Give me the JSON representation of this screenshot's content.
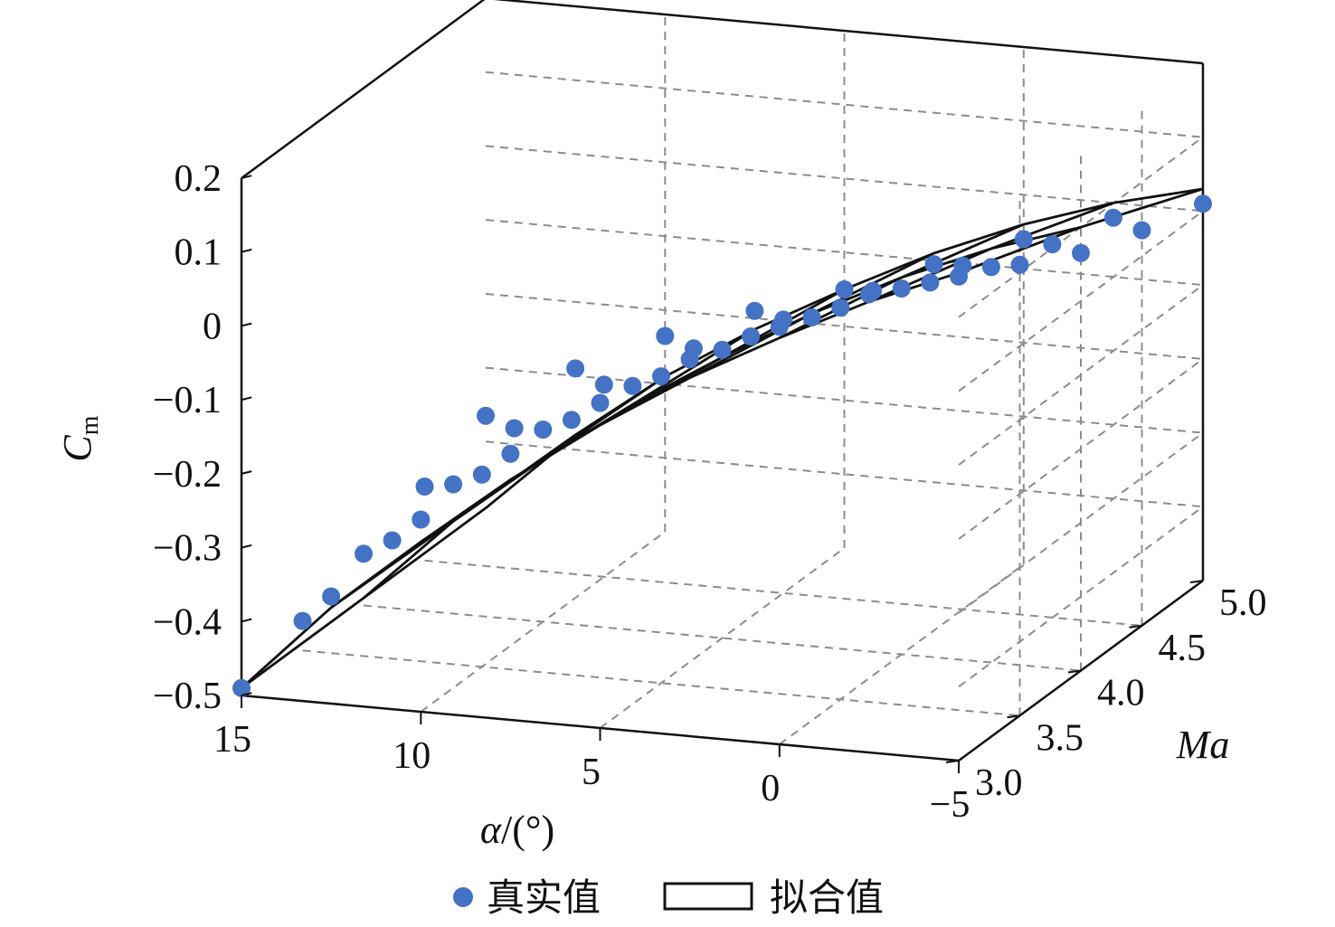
{
  "chart_data": {
    "type": "scatter3d_surface",
    "axes": {
      "alpha": {
        "label_prefix": "α",
        "label_suffix": "/(°)",
        "range": [
          -5,
          15
        ],
        "ticks": [
          "15",
          "10",
          "5",
          "0",
          "−5"
        ],
        "tick_values": [
          15,
          10,
          5,
          0,
          -5
        ]
      },
      "ma": {
        "label": "Ma",
        "range": [
          3.0,
          5.0
        ],
        "ticks": [
          "3.0",
          "3.5",
          "4.0",
          "4.5",
          "5.0"
        ],
        "tick_values": [
          3.0,
          3.5,
          4.0,
          4.5,
          5.0
        ]
      },
      "cm": {
        "label_main": "C",
        "label_sub": "m",
        "range": [
          -0.5,
          0.2
        ],
        "ticks": [
          "0.2",
          "0.1",
          "0",
          "−0.1",
          "−0.2",
          "−0.3",
          "−0.4",
          "−0.5"
        ],
        "tick_values": [
          0.2,
          0.1,
          0,
          -0.1,
          -0.2,
          -0.3,
          -0.4,
          -0.5
        ]
      }
    },
    "grid": true,
    "legend": {
      "position": "bottom",
      "items": [
        {
          "label": "真实值",
          "marker": "dot",
          "color": "#4472C4"
        },
        {
          "label": "拟合值",
          "marker": "rect",
          "color": "#111111"
        }
      ]
    },
    "alpha_values": [
      15,
      12.5,
      10,
      7.5,
      5,
      2.5,
      0,
      -2.5,
      -5
    ],
    "ma_values": [
      3.0,
      3.5,
      4.0,
      4.5,
      5.0
    ],
    "surface_ma_values": [
      3.0,
      4.0,
      5.0
    ],
    "cm_values": [
      [
        -0.49,
        -0.355,
        -0.24,
        -0.14,
        -0.06,
        0.01,
        0.065,
        0.12,
        0.155
      ],
      [
        -0.46,
        -0.34,
        -0.24,
        -0.155,
        -0.085,
        -0.02,
        0.03,
        0.075,
        0.11
      ],
      [
        -0.43,
        -0.325,
        -0.24,
        -0.17,
        -0.11,
        -0.055,
        -0.005,
        0.035,
        0.065
      ],
      [
        -0.4,
        -0.31,
        -0.24,
        -0.18,
        -0.13,
        -0.08,
        -0.035,
        0.005,
        0.035
      ],
      [
        -0.365,
        -0.29,
        -0.235,
        -0.19,
        -0.15,
        -0.105,
        -0.06,
        -0.02,
        0.01
      ]
    ],
    "fit_values": [
      [
        -0.49,
        -0.37,
        -0.27,
        -0.175,
        -0.09,
        -0.015,
        0.05,
        0.11,
        0.16
      ],
      [
        -0.49,
        -0.375,
        -0.28,
        -0.195,
        -0.12,
        -0.05,
        0.01,
        0.06,
        0.1
      ],
      [
        -0.49,
        -0.38,
        -0.29,
        -0.215,
        -0.15,
        -0.09,
        -0.04,
        0.0,
        0.03
      ]
    ],
    "partial_strip": {
      "ma": [
        3.0,
        4.0
      ],
      "alpha": [
        10,
        12.5
      ],
      "cm": [
        [
          -0.27,
          -0.255
        ],
        [
          -0.27,
          -0.24
        ]
      ]
    },
    "colors": {
      "dots": "#4472C4",
      "surface": "#111111",
      "grid": "#8c8c8c",
      "frame": "#111111"
    }
  }
}
